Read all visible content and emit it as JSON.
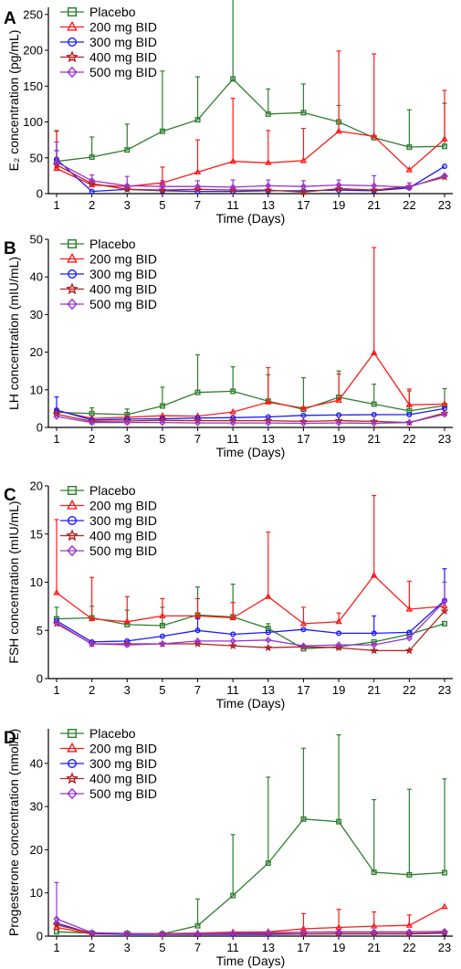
{
  "series_styles": [
    {
      "name": "Placebo",
      "color": "#2e7d2e",
      "marker": "square"
    },
    {
      "name": "200 mg BID",
      "color": "#ff1a1a",
      "marker": "triangle"
    },
    {
      "name": "300 mg BID",
      "color": "#1a1aff",
      "marker": "circle"
    },
    {
      "name": "400 mg BID",
      "color": "#b22222",
      "marker": "star"
    },
    {
      "name": "500 mg BID",
      "color": "#9933cc",
      "marker": "diamond"
    }
  ],
  "chart_data": [
    {
      "type": "line",
      "panel": "A",
      "x_labels": [
        "1",
        "2",
        "3",
        "5",
        "7",
        "11",
        "13",
        "17",
        "19",
        "21",
        "22",
        "23"
      ],
      "xlabel": "Time (Days)",
      "ylabel": "E₂ concentration (pg/mL)",
      "ylim": [
        0,
        260
      ],
      "yticks": [
        0,
        50,
        100,
        150,
        200,
        250
      ],
      "grid": false,
      "legend_position": "top-left",
      "series": [
        {
          "name": "Placebo",
          "values": [
            45,
            51,
            61,
            87,
            103,
            160,
            111,
            113,
            100,
            78,
            65,
            66
          ],
          "error": [
            42,
            28,
            36,
            84,
            60,
            120,
            35,
            40,
            23,
            0,
            52,
            60
          ]
        },
        {
          "name": "200 mg BID",
          "values": [
            35,
            12,
            10,
            15,
            30,
            45,
            43,
            46,
            87,
            80,
            33,
            76
          ],
          "error": [
            53,
            8,
            0,
            22,
            45,
            88,
            45,
            45,
            112,
            115,
            0,
            68
          ]
        },
        {
          "name": "300 mg BID",
          "values": [
            48,
            3,
            6,
            4,
            3,
            3,
            4,
            4,
            5,
            4,
            8,
            38
          ],
          "error": [
            12,
            0,
            0,
            0,
            0,
            0,
            0,
            0,
            0,
            0,
            0,
            0
          ]
        },
        {
          "name": "400 mg BID",
          "values": [
            40,
            14,
            6,
            5,
            6,
            5,
            5,
            2,
            7,
            5,
            10,
            23
          ],
          "error": [
            0,
            0,
            0,
            0,
            0,
            0,
            0,
            0,
            0,
            0,
            0,
            0
          ]
        },
        {
          "name": "500 mg BID",
          "values": [
            44,
            18,
            11,
            10,
            10,
            9,
            11,
            10,
            12,
            11,
            9,
            25
          ],
          "error": [
            28,
            8,
            13,
            8,
            8,
            10,
            8,
            8,
            7,
            14,
            6,
            0
          ]
        }
      ]
    },
    {
      "type": "line",
      "panel": "B",
      "x_labels": [
        "1",
        "2",
        "3",
        "5",
        "7",
        "11",
        "13",
        "17",
        "19",
        "21",
        "22",
        "23"
      ],
      "xlabel": "Time (Days)",
      "ylabel": "LH concentration (mIU/mL)",
      "ylim": [
        0,
        50
      ],
      "yticks": [
        0,
        10,
        20,
        30,
        40,
        50
      ],
      "grid": false,
      "legend_position": "top-left",
      "series": [
        {
          "name": "Placebo",
          "values": [
            4.0,
            3.7,
            3.4,
            5.7,
            9.3,
            9.6,
            7.0,
            4.8,
            8.0,
            6.2,
            4.4,
            5.8
          ],
          "error": [
            0.8,
            1.5,
            1.5,
            5.0,
            10.0,
            6.5,
            7.0,
            8.4,
            7.0,
            5.3,
            5.3,
            4.5
          ]
        },
        {
          "name": "200 mg BID",
          "values": [
            4.5,
            2.4,
            2.7,
            3.1,
            3.0,
            4.1,
            6.7,
            5.1,
            7.2,
            19.8,
            6.0,
            6.2
          ],
          "error": [
            0,
            0,
            0,
            0,
            0,
            0,
            9.2,
            0,
            7.0,
            28.0,
            4.2,
            0
          ]
        },
        {
          "name": "300 mg BID",
          "values": [
            4.6,
            2.0,
            2.2,
            2.3,
            2.5,
            2.6,
            2.8,
            3.2,
            3.3,
            3.4,
            3.4,
            5.0
          ],
          "error": [
            3.5,
            0,
            0,
            0,
            0,
            0,
            0,
            0,
            0,
            0,
            0,
            0
          ]
        },
        {
          "name": "400 mg BID",
          "values": [
            3.5,
            1.6,
            1.7,
            1.9,
            1.8,
            1.8,
            1.8,
            1.6,
            1.8,
            1.6,
            1.3,
            3.8
          ],
          "error": [
            0,
            0,
            0,
            0,
            0,
            0,
            0,
            0,
            0,
            0,
            0,
            0
          ]
        },
        {
          "name": "500 mg BID",
          "values": [
            2.9,
            1.3,
            1.3,
            1.3,
            1.2,
            1.2,
            1.2,
            1.1,
            1.2,
            1.1,
            1.3,
            3.5
          ],
          "error": [
            0,
            0,
            0,
            0,
            0,
            0,
            0,
            0,
            0,
            0,
            0,
            0
          ]
        }
      ]
    },
    {
      "type": "line",
      "panel": "C",
      "x_labels": [
        "1",
        "2",
        "3",
        "5",
        "7",
        "11",
        "13",
        "17",
        "19",
        "21",
        "22",
        "23"
      ],
      "xlabel": "Time (Days)",
      "ylabel": "FSH concentration (mIU/mL)",
      "ylim": [
        0,
        20
      ],
      "yticks": [
        0,
        5,
        10,
        15,
        20
      ],
      "grid": false,
      "legend_position": "top-left",
      "series": [
        {
          "name": "Placebo",
          "values": [
            6.2,
            6.3,
            5.6,
            5.5,
            6.6,
            6.4,
            5.2,
            3.1,
            3.3,
            3.8,
            4.6,
            5.7
          ],
          "error": [
            1.2,
            1.2,
            1.5,
            1.9,
            2.9,
            3.4,
            0.5,
            0,
            0,
            0,
            0,
            0
          ]
        },
        {
          "name": "200 mg BID",
          "values": [
            8.9,
            6.2,
            5.9,
            6.5,
            6.5,
            6.3,
            8.5,
            5.7,
            5.9,
            10.7,
            7.2,
            7.5
          ],
          "error": [
            7.6,
            4.3,
            2.6,
            1.8,
            1.8,
            1.6,
            6.7,
            1.7,
            0.9,
            8.3,
            2.9,
            0
          ]
        },
        {
          "name": "300 mg BID",
          "values": [
            6.0,
            3.8,
            3.9,
            4.4,
            5.0,
            4.6,
            4.8,
            5.1,
            4.7,
            4.7,
            4.8,
            8.1
          ],
          "error": [
            0,
            0,
            0,
            0,
            1.2,
            0,
            0,
            0,
            0,
            1.8,
            0,
            3.3
          ]
        },
        {
          "name": "400 mg BID",
          "values": [
            5.7,
            3.6,
            3.6,
            3.6,
            3.6,
            3.4,
            3.2,
            3.3,
            3.2,
            2.9,
            2.9,
            7.0
          ],
          "error": [
            0,
            0,
            0,
            0,
            0,
            0,
            0,
            0,
            0,
            0,
            0,
            0
          ]
        },
        {
          "name": "500 mg BID",
          "values": [
            5.8,
            3.6,
            3.5,
            3.6,
            3.9,
            3.9,
            4.0,
            3.4,
            3.5,
            3.5,
            4.2,
            8.0
          ],
          "error": [
            0,
            0,
            0,
            0,
            0,
            0,
            0,
            0,
            0,
            0,
            0,
            2.0
          ]
        }
      ]
    },
    {
      "type": "line",
      "panel": "D",
      "x_labels": [
        "1",
        "2",
        "3",
        "5",
        "7",
        "11",
        "13",
        "17",
        "19",
        "21",
        "22",
        "23"
      ],
      "xlabel": "Time (Days)",
      "ylabel": "Progesterone concentration (nmol/L)",
      "ylim": [
        0,
        48
      ],
      "yticks": [
        0,
        10,
        20,
        30,
        40
      ],
      "grid": false,
      "legend_position": "top-left",
      "series": [
        {
          "name": "Placebo",
          "values": [
            1.0,
            0.7,
            0.6,
            0.5,
            2.4,
            9.4,
            16.9,
            27.1,
            26.5,
            14.8,
            14.2,
            14.7
          ],
          "error": [
            0,
            0,
            0,
            0,
            6.2,
            14.1,
            19.9,
            16.4,
            20.1,
            16.8,
            19.8,
            21.7
          ]
        },
        {
          "name": "200 mg BID",
          "values": [
            2.0,
            0.5,
            0.5,
            0.6,
            0.7,
            0.9,
            1.0,
            1.7,
            2.0,
            2.3,
            2.5,
            6.8
          ],
          "error": [
            0,
            0,
            0,
            0,
            0,
            0,
            0,
            3.5,
            4.2,
            3.3,
            2.4,
            0
          ]
        },
        {
          "name": "300 mg BID",
          "values": [
            3.0,
            0.6,
            0.4,
            0.4,
            0.4,
            0.4,
            0.4,
            0.5,
            0.5,
            0.5,
            0.5,
            0.7
          ],
          "error": [
            0,
            0,
            0,
            0,
            0,
            0,
            0,
            0,
            0,
            0,
            0,
            0
          ]
        },
        {
          "name": "400 mg BID",
          "values": [
            2.6,
            0.7,
            0.6,
            0.5,
            0.5,
            0.6,
            0.6,
            0.5,
            0.6,
            0.6,
            0.6,
            0.8
          ],
          "error": [
            0,
            0,
            0,
            0,
            0,
            0,
            0,
            0,
            0,
            0,
            0,
            0
          ]
        },
        {
          "name": "500 mg BID",
          "values": [
            4.0,
            0.8,
            0.6,
            0.5,
            0.6,
            0.7,
            0.8,
            0.9,
            1.0,
            1.0,
            1.0,
            1.1
          ],
          "error": [
            8.4,
            0,
            0,
            0,
            0,
            0,
            0,
            0,
            0,
            0,
            0,
            0
          ]
        }
      ]
    }
  ]
}
